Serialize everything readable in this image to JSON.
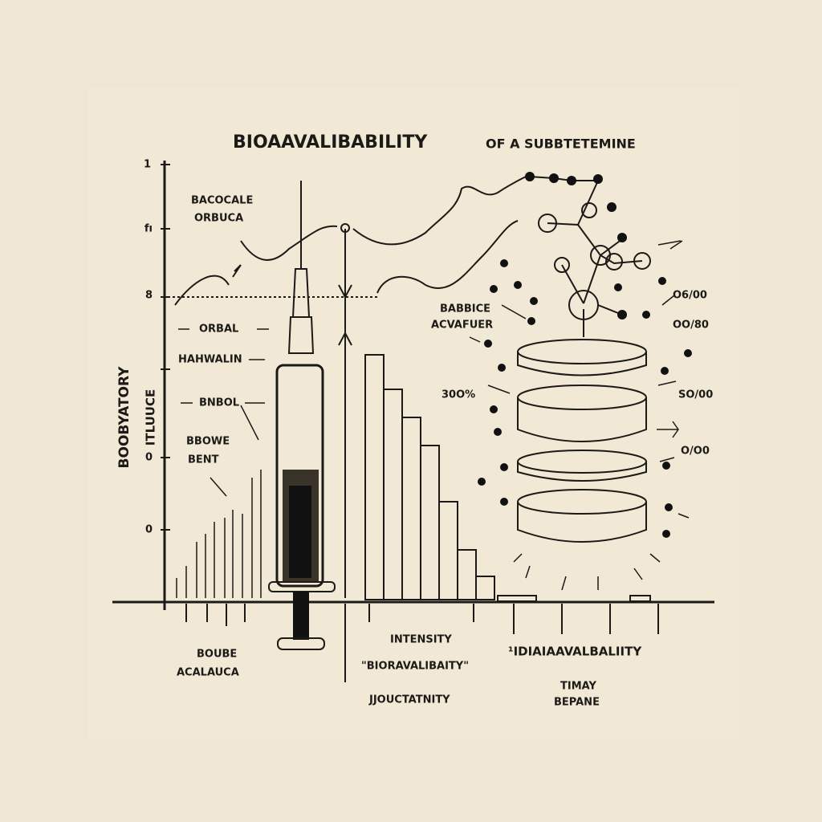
{
  "title": {
    "main": "BIOAAVALIBABILITY",
    "rest": "OF A SUBBTETEMINE"
  },
  "y_axis_label": [
    "BOOBYATORY",
    "ITLUUCE"
  ],
  "y_tick_labels": [
    "1",
    "fı",
    "8",
    "0",
    "0"
  ],
  "left_labels": {
    "top": [
      "BACOCALE",
      "ORBUCA"
    ],
    "orbal": "ORBAL",
    "hahwalin": "HAHWALIN",
    "bnbol": "BNBOL",
    "bbowe": [
      "BBOWE",
      "BENT"
    ]
  },
  "center_label": [
    "BABBICE",
    "ACVAFUER"
  ],
  "percent_label": "30O%",
  "right_labels": [
    "O6/00",
    "OO/80",
    "SO/00",
    "O/O0"
  ],
  "bottom_labels": {
    "left": [
      "BOUBE",
      "ACALAUCA"
    ],
    "intensity": "INTENSITY",
    "quote": "\"BIORAVALIBAITY\"",
    "junction": "JJOUCTATNITY",
    "right": "¹IDIAIAAVALBALIITY",
    "time": [
      "TIMAY",
      "BEPANE"
    ]
  }
}
